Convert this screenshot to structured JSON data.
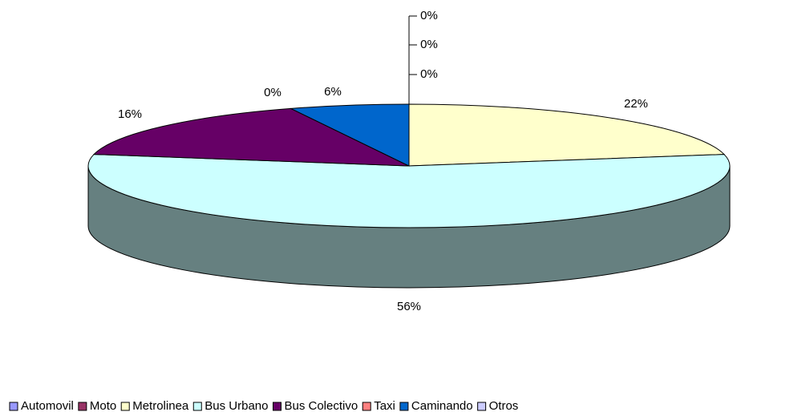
{
  "chart_data": {
    "type": "pie3d",
    "categories": [
      "Automovil",
      "Moto",
      "Metrolinea",
      "Bus Urbano",
      "Bus Colectivo",
      "Taxi",
      "Caminando",
      "Otros"
    ],
    "values": [
      0,
      0,
      22,
      56,
      16,
      0,
      6,
      0
    ],
    "value_labels": [
      "0%",
      "0%",
      "22%",
      "56%",
      "16%",
      "0%",
      "6%",
      "0%"
    ],
    "colors": [
      "#9999ff",
      "#993366",
      "#ffffcc",
      "#ccffff",
      "#660066",
      "#ff8080",
      "#0066cc",
      "#ccccff"
    ],
    "legend": "bottom"
  }
}
